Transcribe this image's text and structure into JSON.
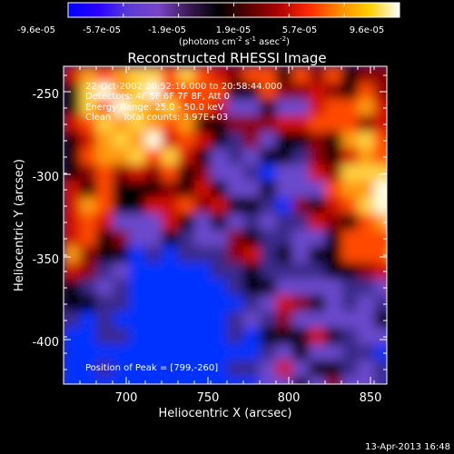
{
  "colorbar": {
    "min": -9.6e-05,
    "max": 9.6e-05,
    "ticks": [
      "-9.6e-05",
      "-5.7e-05",
      "-1.9e-05",
      "1.9e-05",
      "5.7e-05",
      "9.6e-05"
    ],
    "unit_prefix": "(photons cm",
    "unit_sup1": "-2",
    "unit_mid": " s",
    "unit_sup2": "-1",
    "unit_mid2": " asec",
    "unit_sup3": "-2",
    "unit_suffix": ")",
    "colors": [
      "#0000ff",
      "#2a00ff",
      "#5b3bd6",
      "#7a44c6",
      "#3a1a55",
      "#000000",
      "#5a0000",
      "#b00000",
      "#ff2a00",
      "#ff8a00",
      "#ffd000",
      "#ffffff"
    ]
  },
  "plot": {
    "title": "Reconstructed RHESSI Image",
    "xlabel": "Heliocentric X (arcsec)",
    "ylabel": "Heliocentric Y (arcsec)",
    "x_ticks": [
      "700",
      "750",
      "800",
      "850"
    ],
    "y_ticks": [
      "-250",
      "-300",
      "-350",
      "-400"
    ]
  },
  "annotations": {
    "line1": "22-Oct-2002 20:52:16.000 to 20:58:44.000",
    "line2": "Detectors: 4F 5F 6F 7F 8F, Att 0",
    "line3": "Energy Range: 25.0 - 50.0 keV",
    "line4": "Clean    Total counts: 3.97E+03",
    "peak": "Position of Peak = [799,-260]"
  },
  "footer": {
    "timestamp": "13-Apr-2013 16:48"
  }
}
